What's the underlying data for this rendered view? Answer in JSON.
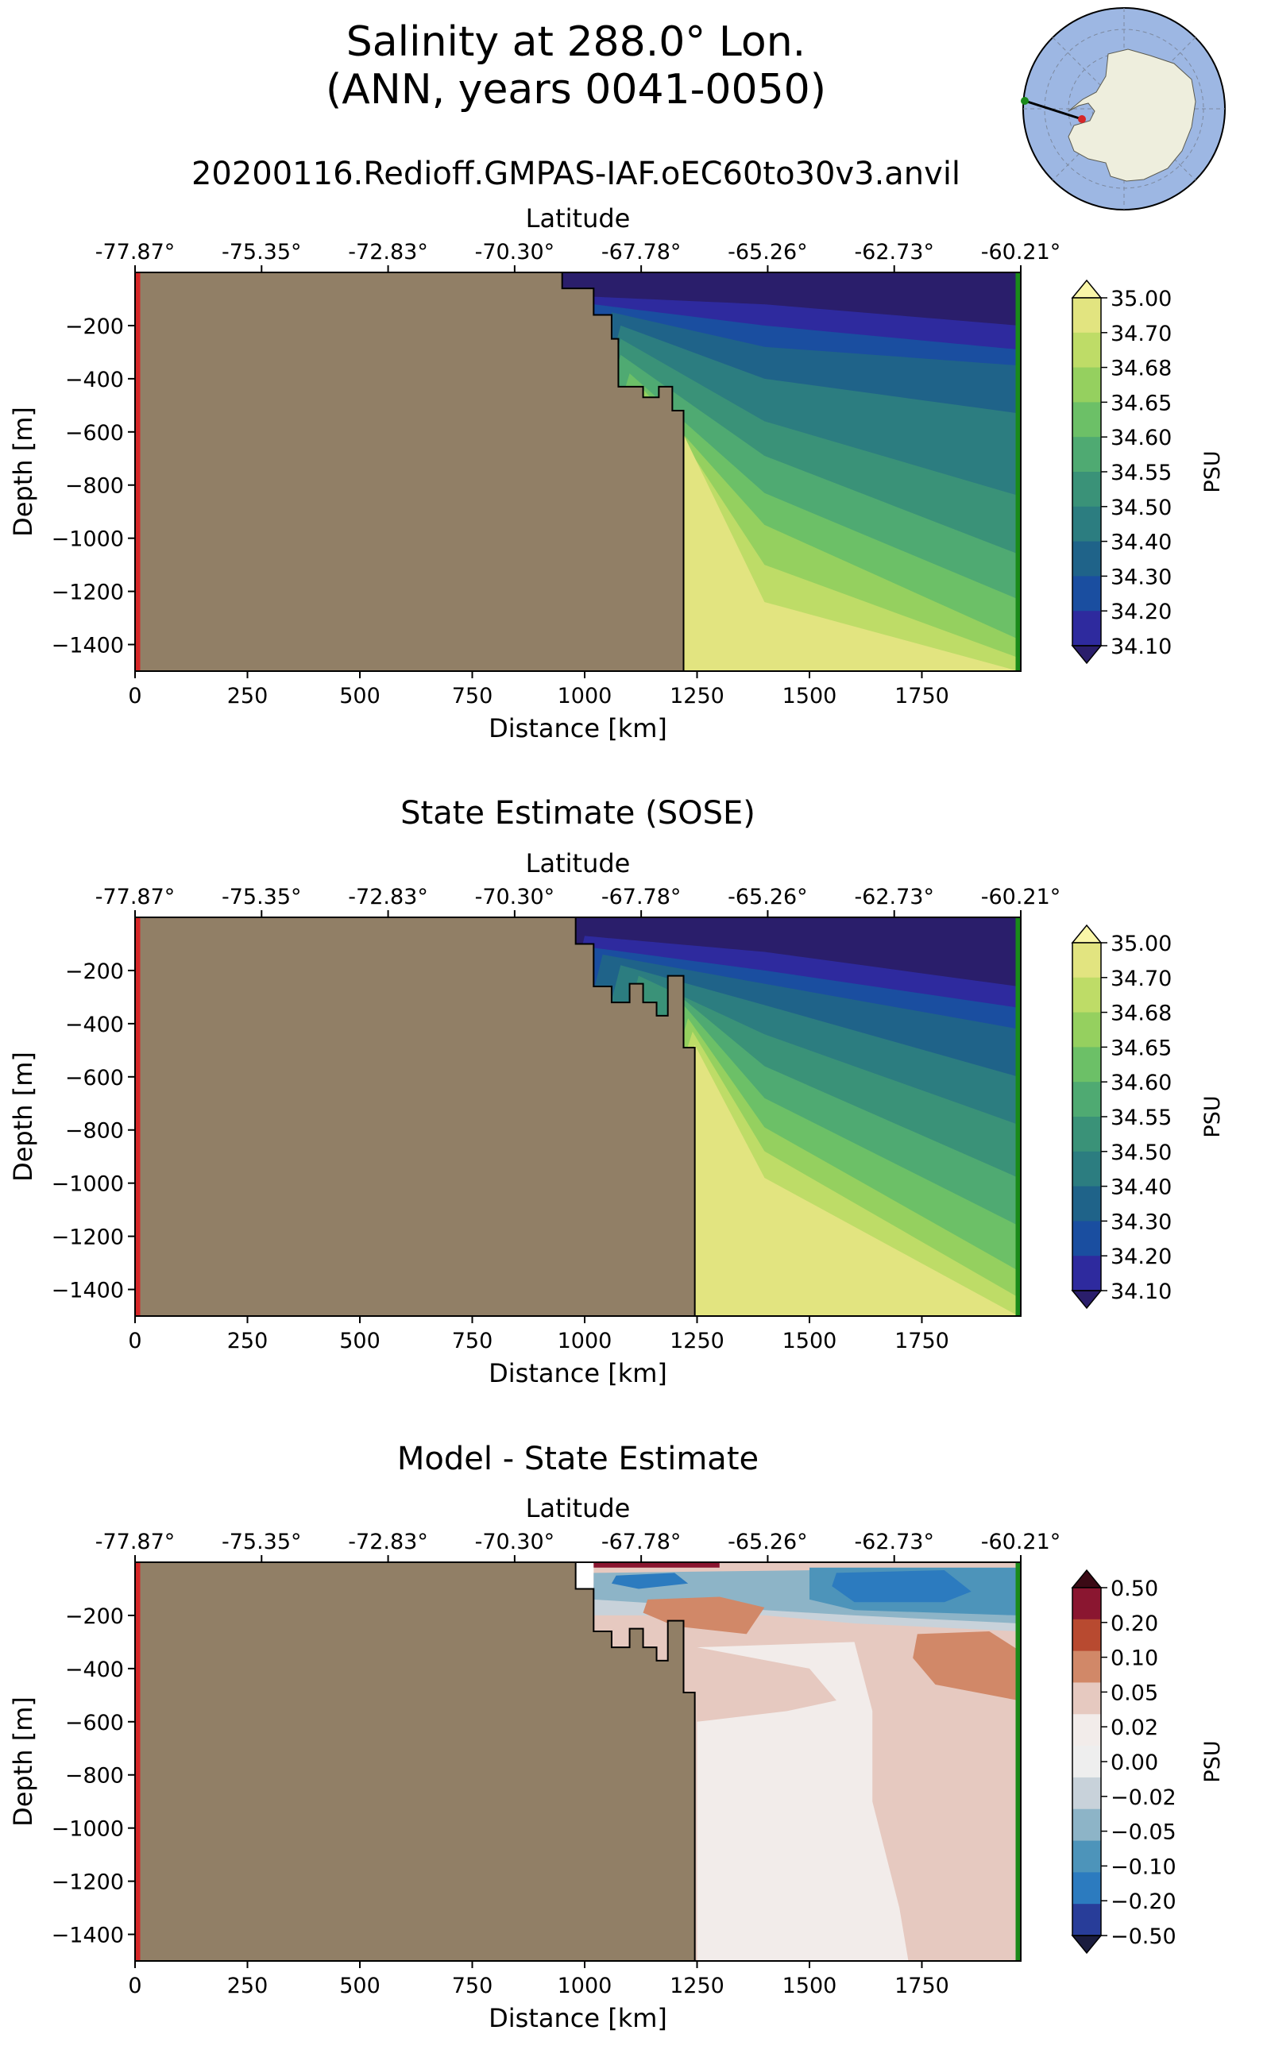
{
  "header": {
    "title_line1": "Salinity at 288.0° Lon.",
    "title_line2": "(ANN, years 0041-0050)",
    "run_name": "20200116.Redioff.GMPAS-IAF.oEC60to30v3.anvil"
  },
  "inset_map": {
    "projection": "south-polar-stereographic",
    "ocean_color": "#9db7e3",
    "land_color": "#eeeedd",
    "section_start_marker_color": "#d62728",
    "section_end_marker_color": "#1a8a1a"
  },
  "colors": {
    "bathymetry_fill": "#917f66",
    "start_edge_line": "#d62728",
    "end_edge_line": "#1a8a1a"
  },
  "chart_data": [
    {
      "type": "heatmap",
      "title": "",
      "xlabel": "Distance [km]",
      "ylabel": "Depth [m]",
      "top_xlabel": "Latitude",
      "xlim": [
        0,
        1970
      ],
      "ylim": [
        -1500,
        0
      ],
      "x_ticks": [
        "0",
        "250",
        "500",
        "750",
        "1000",
        "1250",
        "1500",
        "1750"
      ],
      "y_ticks": [
        "−200",
        "−400",
        "−600",
        "−800",
        "−1000",
        "−1200",
        "−1400"
      ],
      "top_ticks": [
        "-77.87°",
        "-75.35°",
        "-72.83°",
        "-70.30°",
        "-67.78°",
        "-65.26°",
        "-62.73°",
        "-60.21°"
      ],
      "colorbar": {
        "label": "PSU",
        "levels": [
          "35.00",
          "34.70",
          "34.68",
          "34.65",
          "34.60",
          "34.55",
          "34.50",
          "34.40",
          "34.30",
          "34.20",
          "34.10"
        ],
        "colors": [
          "#f9f6a8",
          "#e2e480",
          "#bedc67",
          "#95d05f",
          "#6cc067",
          "#4faa72",
          "#3a9278",
          "#2c7d80",
          "#1f6389",
          "#1a4ea0",
          "#2e2a9e",
          "#2a1e6b"
        ],
        "extend": "both"
      },
      "shelf_edge_km": 1220,
      "bottom_profile": [
        [
          0,
          -1500
        ],
        [
          0,
          0
        ],
        [
          950,
          0
        ],
        [
          950,
          -60
        ],
        [
          1020,
          -60
        ],
        [
          1020,
          -160
        ],
        [
          1060,
          -160
        ],
        [
          1060,
          -250
        ],
        [
          1075,
          -250
        ],
        [
          1075,
          -430
        ],
        [
          1130,
          -430
        ],
        [
          1130,
          -470
        ],
        [
          1165,
          -470
        ],
        [
          1165,
          -430
        ],
        [
          1195,
          -430
        ],
        [
          1195,
          -520
        ],
        [
          1220,
          -520
        ],
        [
          1220,
          -1500
        ]
      ],
      "isolines": [
        [
          [
            1000,
            -90
          ],
          [
            1400,
            -120
          ],
          [
            1965,
            -200
          ]
        ],
        [
          [
            1020,
            -120
          ],
          [
            1400,
            -200
          ],
          [
            1965,
            -290
          ]
        ],
        [
          [
            1060,
            -150
          ],
          [
            1400,
            -280
          ],
          [
            1965,
            -350
          ]
        ],
        [
          [
            1080,
            -200
          ],
          [
            1400,
            -400
          ],
          [
            1965,
            -530
          ]
        ],
        [
          [
            1080,
            -250
          ],
          [
            1400,
            -560
          ],
          [
            1965,
            -840
          ]
        ],
        [
          [
            1080,
            -310
          ],
          [
            1400,
            -690
          ],
          [
            1965,
            -1060
          ]
        ],
        [
          [
            1100,
            -380
          ],
          [
            1400,
            -830
          ],
          [
            1965,
            -1230
          ]
        ],
        [
          [
            1130,
            -440
          ],
          [
            1400,
            -950
          ],
          [
            1965,
            -1380
          ]
        ],
        [
          [
            1160,
            -480
          ],
          [
            1400,
            -1100
          ],
          [
            1965,
            -1450
          ]
        ],
        [
          [
            1200,
            -540
          ],
          [
            1400,
            -1240
          ],
          [
            1965,
            -1500
          ]
        ]
      ]
    },
    {
      "type": "heatmap",
      "title": "State Estimate (SOSE)",
      "xlabel": "Distance [km]",
      "ylabel": "Depth [m]",
      "top_xlabel": "Latitude",
      "xlim": [
        0,
        1970
      ],
      "ylim": [
        -1500,
        0
      ],
      "x_ticks": [
        "0",
        "250",
        "500",
        "750",
        "1000",
        "1250",
        "1500",
        "1750"
      ],
      "y_ticks": [
        "−200",
        "−400",
        "−600",
        "−800",
        "−1000",
        "−1200",
        "−1400"
      ],
      "top_ticks": [
        "-77.87°",
        "-75.35°",
        "-72.83°",
        "-70.30°",
        "-67.78°",
        "-65.26°",
        "-62.73°",
        "-60.21°"
      ],
      "colorbar": {
        "label": "PSU",
        "levels": [
          "35.00",
          "34.70",
          "34.68",
          "34.65",
          "34.60",
          "34.55",
          "34.50",
          "34.40",
          "34.30",
          "34.20",
          "34.10"
        ],
        "colors": [
          "#f9f6a8",
          "#e2e480",
          "#bedc67",
          "#95d05f",
          "#6cc067",
          "#4faa72",
          "#3a9278",
          "#2c7d80",
          "#1f6389",
          "#1a4ea0",
          "#2e2a9e",
          "#2a1e6b"
        ],
        "extend": "both"
      },
      "shelf_edge_km": 1245,
      "bottom_profile": [
        [
          0,
          -1500
        ],
        [
          0,
          0
        ],
        [
          980,
          0
        ],
        [
          980,
          -100
        ],
        [
          1020,
          -100
        ],
        [
          1020,
          -260
        ],
        [
          1060,
          -260
        ],
        [
          1060,
          -320
        ],
        [
          1100,
          -320
        ],
        [
          1100,
          -250
        ],
        [
          1130,
          -250
        ],
        [
          1130,
          -320
        ],
        [
          1160,
          -320
        ],
        [
          1160,
          -370
        ],
        [
          1185,
          -370
        ],
        [
          1185,
          -220
        ],
        [
          1220,
          -220
        ],
        [
          1220,
          -490
        ],
        [
          1245,
          -490
        ],
        [
          1245,
          -1500
        ]
      ],
      "isolines": [
        [
          [
            1000,
            -70
          ],
          [
            1400,
            -130
          ],
          [
            1965,
            -260
          ]
        ],
        [
          [
            1000,
            -110
          ],
          [
            1400,
            -200
          ],
          [
            1965,
            -340
          ]
        ],
        [
          [
            1040,
            -140
          ],
          [
            1400,
            -250
          ],
          [
            1965,
            -420
          ]
        ],
        [
          [
            1080,
            -180
          ],
          [
            1400,
            -330
          ],
          [
            1965,
            -600
          ]
        ],
        [
          [
            1120,
            -220
          ],
          [
            1400,
            -440
          ],
          [
            1965,
            -780
          ]
        ],
        [
          [
            1200,
            -280
          ],
          [
            1400,
            -560
          ],
          [
            1965,
            -980
          ]
        ],
        [
          [
            1220,
            -330
          ],
          [
            1400,
            -680
          ],
          [
            1965,
            -1160
          ]
        ],
        [
          [
            1230,
            -380
          ],
          [
            1400,
            -790
          ],
          [
            1965,
            -1330
          ]
        ],
        [
          [
            1240,
            -430
          ],
          [
            1400,
            -880
          ],
          [
            1965,
            -1430
          ]
        ],
        [
          [
            1245,
            -480
          ],
          [
            1400,
            -980
          ],
          [
            1965,
            -1500
          ]
        ]
      ]
    },
    {
      "type": "heatmap",
      "title": "Model - State Estimate",
      "xlabel": "Distance [km]",
      "ylabel": "Depth [m]",
      "top_xlabel": "Latitude",
      "xlim": [
        0,
        1970
      ],
      "ylim": [
        -1500,
        0
      ],
      "x_ticks": [
        "0",
        "250",
        "500",
        "750",
        "1000",
        "1250",
        "1500",
        "1750"
      ],
      "y_ticks": [
        "−200",
        "−400",
        "−600",
        "−800",
        "−1000",
        "−1200",
        "−1400"
      ],
      "top_ticks": [
        "-77.87°",
        "-75.35°",
        "-72.83°",
        "-70.30°",
        "-67.78°",
        "-65.26°",
        "-62.73°",
        "-60.21°"
      ],
      "colorbar": {
        "label": "PSU",
        "levels": [
          "0.50",
          "0.20",
          "0.10",
          "0.05",
          "0.02",
          "0.00",
          "−0.02",
          "−0.05",
          "−0.10",
          "−0.20",
          "−0.50"
        ],
        "colors": [
          "#3b0a15",
          "#8a1630",
          "#b84a30",
          "#d18868",
          "#e6c9c0",
          "#f2ecea",
          "#eeeeee",
          "#c8d2da",
          "#8db4c7",
          "#4d94ba",
          "#2c7bbf",
          "#283d99",
          "#1a1c3e"
        ],
        "extend": "both"
      },
      "shelf_edge_km": 1245,
      "bottom_profile": [
        [
          0,
          -1500
        ],
        [
          0,
          0
        ],
        [
          980,
          0
        ],
        [
          980,
          -100
        ],
        [
          1020,
          -100
        ],
        [
          1020,
          -260
        ],
        [
          1060,
          -260
        ],
        [
          1060,
          -320
        ],
        [
          1100,
          -320
        ],
        [
          1100,
          -250
        ],
        [
          1130,
          -250
        ],
        [
          1130,
          -320
        ],
        [
          1160,
          -320
        ],
        [
          1160,
          -370
        ],
        [
          1185,
          -370
        ],
        [
          1185,
          -220
        ],
        [
          1220,
          -220
        ],
        [
          1220,
          -490
        ],
        [
          1245,
          -490
        ],
        [
          1245,
          -1500
        ]
      ],
      "anomalies": [
        {
          "value": 0.03,
          "points": [
            [
              1020,
              0
            ],
            [
              1965,
              0
            ],
            [
              1965,
              -1500
            ],
            [
              1020,
              -1500
            ]
          ]
        },
        {
          "value": 0.01,
          "points": [
            [
              1250,
              -320
            ],
            [
              1500,
              -400
            ],
            [
              1560,
              -520
            ],
            [
              1450,
              -560
            ],
            [
              1250,
              -600
            ],
            [
              1250,
              -1500
            ],
            [
              1720,
              -1500
            ],
            [
              1700,
              -1300
            ],
            [
              1640,
              -900
            ],
            [
              1640,
              -560
            ],
            [
              1600,
              -300
            ]
          ]
        },
        {
          "value": -0.03,
          "points": [
            [
              1020,
              -80
            ],
            [
              1400,
              -60
            ],
            [
              1965,
              -60
            ],
            [
              1965,
              -260
            ],
            [
              1600,
              -230
            ],
            [
              1400,
              -200
            ],
            [
              1020,
              -200
            ]
          ]
        },
        {
          "value": -0.08,
          "points": [
            [
              1020,
              -40
            ],
            [
              1500,
              -30
            ],
            [
              1965,
              -30
            ],
            [
              1965,
              -230
            ],
            [
              1600,
              -200
            ],
            [
              1300,
              -170
            ],
            [
              1020,
              -140
            ]
          ]
        },
        {
          "value": -0.15,
          "points": [
            [
              1500,
              -20
            ],
            [
              1965,
              -20
            ],
            [
              1965,
              -200
            ],
            [
              1600,
              -180
            ],
            [
              1500,
              -140
            ]
          ]
        },
        {
          "value": -0.3,
          "points": [
            [
              1560,
              -40
            ],
            [
              1800,
              -30
            ],
            [
              1860,
              -110
            ],
            [
              1800,
              -150
            ],
            [
              1600,
              -150
            ],
            [
              1550,
              -90
            ]
          ]
        },
        {
          "value": -0.3,
          "points": [
            [
              1070,
              -50
            ],
            [
              1200,
              -40
            ],
            [
              1230,
              -80
            ],
            [
              1120,
              -100
            ],
            [
              1060,
              -80
            ]
          ]
        },
        {
          "value": 0.07,
          "points": [
            [
              1140,
              -140
            ],
            [
              1300,
              -130
            ],
            [
              1400,
              -170
            ],
            [
              1360,
              -270
            ],
            [
              1200,
              -240
            ],
            [
              1130,
              -190
            ]
          ]
        },
        {
          "value": 0.07,
          "points": [
            [
              1740,
              -270
            ],
            [
              1900,
              -260
            ],
            [
              1965,
              -330
            ],
            [
              1965,
              -520
            ],
            [
              1780,
              -460
            ],
            [
              1730,
              -360
            ]
          ]
        },
        {
          "value": 0.3,
          "points": [
            [
              1020,
              0
            ],
            [
              1300,
              0
            ],
            [
              1300,
              -20
            ],
            [
              1020,
              -20
            ]
          ]
        }
      ]
    }
  ]
}
